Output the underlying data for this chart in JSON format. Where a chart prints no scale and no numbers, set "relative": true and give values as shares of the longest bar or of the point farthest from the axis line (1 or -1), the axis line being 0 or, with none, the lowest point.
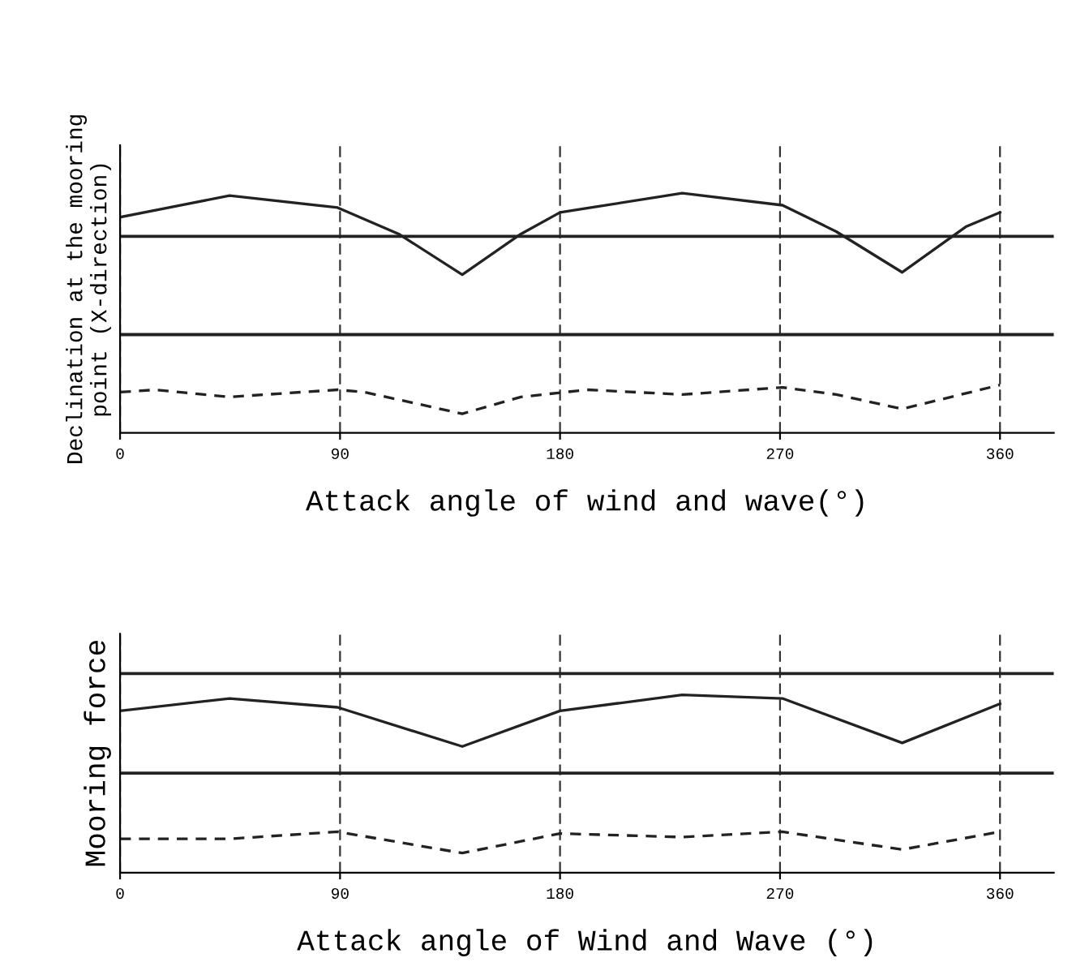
{
  "chart_data": [
    {
      "type": "line",
      "relative": true,
      "xlabel": "Attack angle of wind and wave(°)",
      "ylabel": "Declination at the mooring\npoint (X-direction)",
      "xlim": [
        0,
        382
      ],
      "xticks": [
        0,
        90,
        180,
        270,
        360
      ],
      "grid": "x",
      "tick_labels": "x",
      "ref_lines": [
        {
          "axis": "y",
          "value": 0.82,
          "color": "#222222"
        },
        {
          "axis": "y",
          "value": 0.41,
          "color": "#222222"
        }
      ],
      "series": [
        {
          "color": "#222222",
          "line_style": "solid",
          "x": [
            0,
            44.8,
            89,
            114,
            140,
            164,
            180,
            230,
            271,
            293,
            320,
            346,
            360
          ],
          "values": [
            0.9,
            0.99,
            0.94,
            0.83,
            0.66,
            0.83,
            0.92,
            1.0,
            0.95,
            0.84,
            0.67,
            0.86,
            0.92
          ]
        },
        {
          "color": "#222222",
          "line_style": "dashed",
          "x": [
            0,
            14.4,
            44.8,
            89,
            100,
            140,
            164,
            191,
            230,
            271,
            293,
            320,
            360
          ],
          "values": [
            0.17,
            0.18,
            0.15,
            0.18,
            0.17,
            0.08,
            0.15,
            0.18,
            0.16,
            0.19,
            0.16,
            0.1,
            0.2
          ]
        }
      ]
    },
    {
      "type": "line",
      "relative": true,
      "xlabel": "Attack angle of Wind and Wave (°)",
      "ylabel": "Mooring force",
      "xlim": [
        0,
        382
      ],
      "xticks": [
        0,
        90,
        180,
        270,
        360
      ],
      "grid": "x",
      "tick_labels": "x",
      "ref_lines": [
        {
          "axis": "y",
          "value": 1.12,
          "color": "#222222"
        },
        {
          "axis": "y",
          "value": 0.56,
          "color": "#222222"
        }
      ],
      "series": [
        {
          "color": "#222222",
          "line_style": "solid",
          "x": [
            0,
            44.8,
            89,
            140,
            180,
            230,
            271,
            320,
            360
          ],
          "values": [
            0.91,
            0.98,
            0.93,
            0.71,
            0.91,
            1.0,
            0.98,
            0.73,
            0.95
          ]
        },
        {
          "color": "#222222",
          "line_style": "dashed",
          "x": [
            0,
            44.8,
            89,
            140,
            180,
            230,
            271,
            320,
            360
          ],
          "values": [
            0.19,
            0.19,
            0.23,
            0.11,
            0.22,
            0.2,
            0.23,
            0.13,
            0.23
          ]
        }
      ]
    }
  ]
}
